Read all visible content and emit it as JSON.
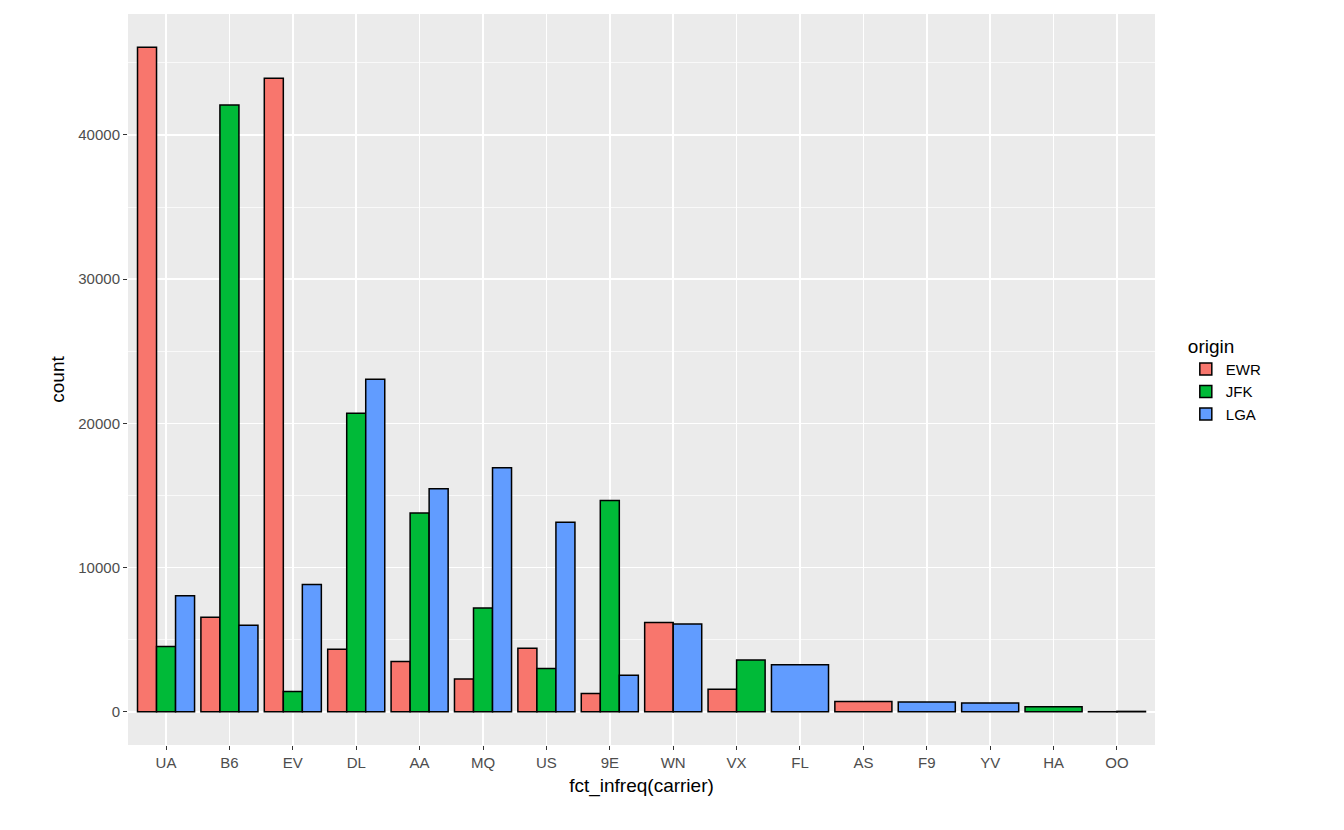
{
  "chart_data": {
    "type": "bar",
    "x_label": "fct_infreq(carrier)",
    "y_label": "count",
    "legend_title": "origin",
    "legend": "right",
    "grid": true,
    "categories": [
      "UA",
      "B6",
      "EV",
      "DL",
      "AA",
      "MQ",
      "US",
      "9E",
      "WN",
      "VX",
      "FL",
      "AS",
      "F9",
      "YV",
      "HA",
      "OO"
    ],
    "series": [
      {
        "name": "EWR",
        "color": "#F8766D",
        "values": [
          46087,
          6557,
          43939,
          4342,
          3487,
          2276,
          4405,
          1268,
          6188,
          1566,
          null,
          714,
          null,
          null,
          null,
          6
        ]
      },
      {
        "name": "JFK",
        "color": "#00BA38",
        "values": [
          4534,
          42076,
          1408,
          20701,
          13783,
          7193,
          2995,
          14651,
          null,
          3596,
          null,
          null,
          null,
          null,
          342,
          null
        ]
      },
      {
        "name": "LGA",
        "color": "#619CFF",
        "values": [
          8044,
          6002,
          8826,
          23067,
          15459,
          16928,
          13136,
          2541,
          6087,
          null,
          3260,
          null,
          685,
          601,
          null,
          26
        ]
      }
    ],
    "ylim": [
      -2304,
      48391
    ],
    "yticks": [
      0,
      10000,
      20000,
      30000,
      40000
    ]
  }
}
